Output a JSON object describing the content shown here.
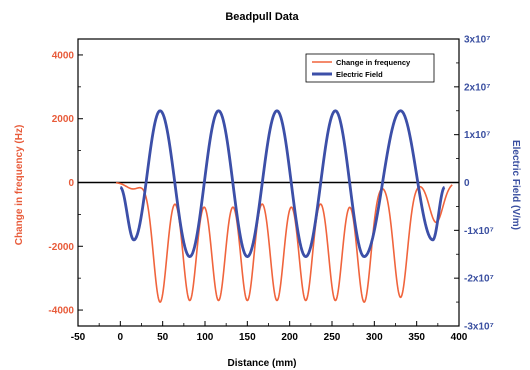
{
  "chart_data": {
    "type": "line",
    "title": "Beadpull Data",
    "xlabel": "Distance (mm)",
    "ylabel_left": "Change in frequency (Hz)",
    "ylabel_right": "Electric Field (V/m)",
    "xlim": [
      -50,
      400
    ],
    "ylim_left": [
      -4500,
      4500
    ],
    "ylim_right": [
      -30000000,
      30000000
    ],
    "x_ticks": [
      "-50",
      "0",
      "50",
      "100",
      "150",
      "200",
      "250",
      "300",
      "350",
      "400"
    ],
    "y_left_ticks": [
      "-4000",
      "-2000",
      "0",
      "2000",
      "4000"
    ],
    "y_right_ticks": [
      "-3x10⁷",
      "-2x10⁷",
      "-1x10⁷",
      "0",
      "1x10⁷",
      "2x10⁷",
      "3x10⁷"
    ],
    "legend_position": "top-right",
    "grid": false,
    "series": [
      {
        "name": "Change in frequency",
        "axis": "left",
        "color": "#f0643c",
        "minima": [
          {
            "x": 15,
            "y": -200
          },
          {
            "x": 47,
            "y": -3750
          },
          {
            "x": 82,
            "y": -3700
          },
          {
            "x": 116,
            "y": -3700
          },
          {
            "x": 150,
            "y": -3700
          },
          {
            "x": 185,
            "y": -3700
          },
          {
            "x": 219,
            "y": -3700
          },
          {
            "x": 254,
            "y": -3700
          },
          {
            "x": 288,
            "y": -3750
          },
          {
            "x": 331,
            "y": -3600
          },
          {
            "x": 373,
            "y": -1250
          }
        ],
        "width_mm": 8
      },
      {
        "name": "Electric Field",
        "axis": "right",
        "color": "#3c4fa8",
        "extrema": [
          {
            "x": 0,
            "y": -1000000
          },
          {
            "x": 16,
            "y": -12000000
          },
          {
            "x": 47,
            "y": 15000000
          },
          {
            "x": 82,
            "y": -15500000
          },
          {
            "x": 116,
            "y": 15000000
          },
          {
            "x": 150,
            "y": -15500000
          },
          {
            "x": 185,
            "y": 15000000
          },
          {
            "x": 219,
            "y": -15500000
          },
          {
            "x": 254,
            "y": 15000000
          },
          {
            "x": 288,
            "y": -15500000
          },
          {
            "x": 331,
            "y": 15000000
          },
          {
            "x": 369,
            "y": -12000000
          },
          {
            "x": 383,
            "y": -1000000
          }
        ]
      }
    ]
  }
}
